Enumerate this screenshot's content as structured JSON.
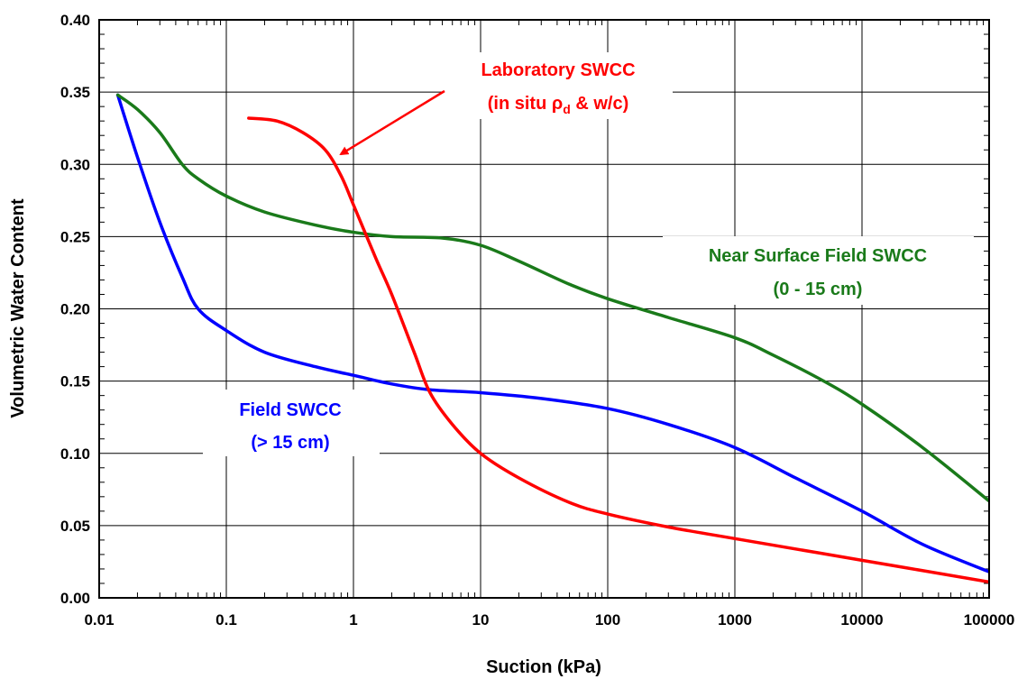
{
  "chart_data": {
    "type": "line",
    "xlabel": "Suction (kPa)",
    "ylabel": "Volumetric Water Content",
    "xscale": "log",
    "xlim": [
      0.01,
      100000
    ],
    "ylim": [
      0.0,
      0.4
    ],
    "grid": true,
    "x_tick_labels": [
      "0.01",
      "0.1",
      "1",
      "10",
      "100",
      "1000",
      "10000",
      "100000"
    ],
    "y_tick_labels": [
      "0.00",
      "0.05",
      "0.10",
      "0.15",
      "0.20",
      "0.25",
      "0.30",
      "0.35",
      "0.40"
    ],
    "series": [
      {
        "name": "Field SWCC (> 15 cm)",
        "color": "#0000ff",
        "x": [
          0.014,
          0.02,
          0.03,
          0.045,
          0.06,
          0.1,
          0.2,
          0.5,
          1,
          2,
          4,
          10,
          30,
          100,
          300,
          1000,
          3000,
          10000,
          30000,
          100000
        ],
        "y": [
          0.348,
          0.305,
          0.26,
          0.222,
          0.2,
          0.185,
          0.17,
          0.16,
          0.154,
          0.148,
          0.144,
          0.142,
          0.138,
          0.131,
          0.12,
          0.104,
          0.083,
          0.06,
          0.037,
          0.018
        ]
      },
      {
        "name": "Near Surface Field SWCC (0 - 15 cm)",
        "color": "#1a7a1a",
        "x": [
          0.014,
          0.02,
          0.03,
          0.045,
          0.06,
          0.1,
          0.2,
          0.5,
          1,
          2,
          5,
          10,
          20,
          50,
          100,
          300,
          1000,
          2000,
          5000,
          10000,
          30000,
          100000
        ],
        "y": [
          0.348,
          0.338,
          0.322,
          0.3,
          0.29,
          0.278,
          0.267,
          0.258,
          0.253,
          0.25,
          0.249,
          0.244,
          0.233,
          0.217,
          0.207,
          0.194,
          0.18,
          0.168,
          0.15,
          0.134,
          0.104,
          0.067
        ]
      },
      {
        "name": "Laboratory SWCC (in situ ρd & w/c)",
        "color": "#ff0000",
        "x": [
          0.15,
          0.25,
          0.4,
          0.6,
          0.8,
          1,
          1.5,
          2,
          3,
          4,
          6,
          10,
          20,
          50,
          100,
          300,
          1000,
          10000,
          100000
        ],
        "y": [
          0.332,
          0.33,
          0.322,
          0.31,
          0.292,
          0.272,
          0.235,
          0.21,
          0.17,
          0.142,
          0.12,
          0.1,
          0.083,
          0.066,
          0.058,
          0.049,
          0.041,
          0.026,
          0.011
        ]
      }
    ],
    "annotations": {
      "lab_line1": "Laboratory SWCC",
      "lab_line2_prefix": "(in situ ",
      "lab_rho": "ρ",
      "lab_rho_sub": "d",
      "lab_line2_suffix": " & w/c)",
      "field_line1": "Field SWCC",
      "field_line2": "(> 15 cm)",
      "near_line1": "Near Surface Field SWCC",
      "near_line2": "(0 - 15 cm)"
    }
  }
}
